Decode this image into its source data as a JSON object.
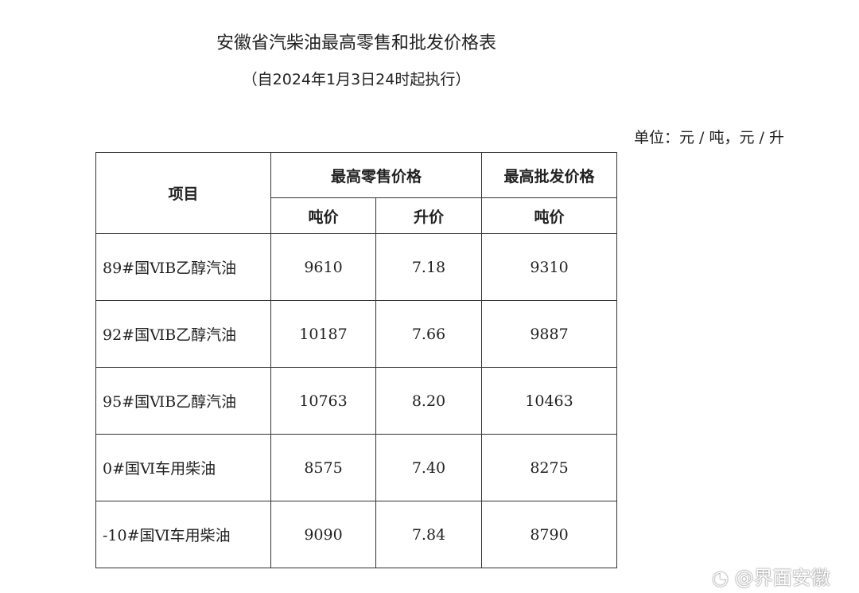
{
  "header": {
    "title": "安徽省汽柴油最高零售和批发价格表",
    "subtitle": "（自2024年1月3日24时起执行）",
    "unit": "单位：元 / 吨，元 / 升"
  },
  "table": {
    "col_item": "项目",
    "group_retail": "最高零售价格",
    "group_wholesale": "最高批发价格",
    "sub_retail_ton": "吨价",
    "sub_retail_liter": "升价",
    "sub_wholesale_ton": "吨价",
    "rows": [
      {
        "name": "89#国ⅥB乙醇汽油",
        "retail_ton": "9610",
        "retail_liter": "7.18",
        "wholesale_ton": "9310"
      },
      {
        "name": "92#国ⅥB乙醇汽油",
        "retail_ton": "10187",
        "retail_liter": "7.66",
        "wholesale_ton": "9887"
      },
      {
        "name": "95#国ⅥB乙醇汽油",
        "retail_ton": "10763",
        "retail_liter": "8.20",
        "wholesale_ton": "10463"
      },
      {
        "name": "0#国Ⅵ车用柴油",
        "retail_ton": "8575",
        "retail_liter": "7.40",
        "wholesale_ton": "8275"
      },
      {
        "name": "-10#国Ⅵ车用柴油",
        "retail_ton": "9090",
        "retail_liter": "7.84",
        "wholesale_ton": "8790"
      }
    ]
  },
  "watermark": {
    "text": "@界面安徽",
    "icon": "weibo-icon"
  }
}
